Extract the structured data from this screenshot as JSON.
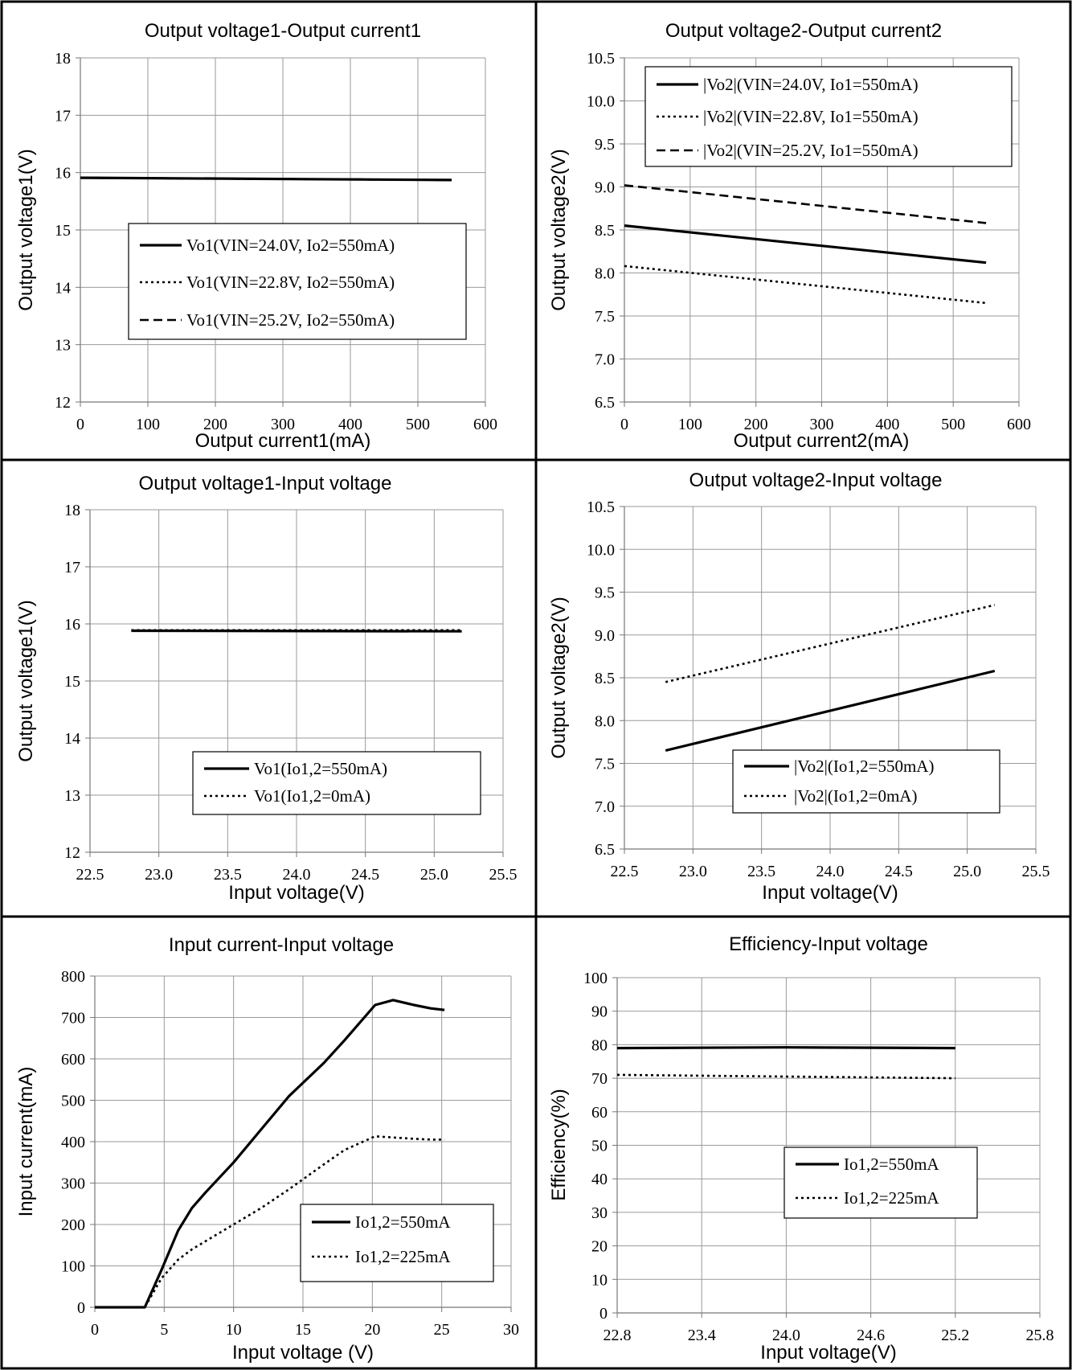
{
  "chart_data": [
    {
      "type": "line",
      "title": "Output voltage1-Output current1",
      "xlabel": "Output current1(mA)",
      "ylabel": "Output voltage1(V)",
      "xlim": [
        0,
        600
      ],
      "xticks": [
        0,
        100,
        200,
        300,
        400,
        500,
        600
      ],
      "xtick_labels": [
        "0",
        "100",
        "200",
        "300",
        "400",
        "500",
        "600"
      ],
      "ylim": [
        12,
        18
      ],
      "yticks": [
        12,
        13,
        14,
        15,
        16,
        17,
        18
      ],
      "ytick_labels": [
        "12",
        "13",
        "14",
        "15",
        "16",
        "17",
        "18"
      ],
      "legend_position": "center",
      "series": [
        {
          "name": "Vo1(VIN=24.0V, Io2=550mA)",
          "style": "solid",
          "x": [
            0,
            550
          ],
          "y": [
            15.91,
            15.87
          ]
        },
        {
          "name": "Vo1(VIN=22.8V, Io2=550mA)",
          "style": "dotted",
          "x": [
            0,
            550
          ],
          "y": [
            15.91,
            15.87
          ]
        },
        {
          "name": "Vo1(VIN=25.2V, Io2=550mA)",
          "style": "dashed",
          "x": [
            0,
            550
          ],
          "y": [
            15.91,
            15.87
          ]
        }
      ]
    },
    {
      "type": "line",
      "title": "Output voltage2-Output current2",
      "xlabel": "Output current2(mA)",
      "ylabel": "Output voltage2(V)",
      "xlim": [
        0,
        600
      ],
      "xticks": [
        0,
        100,
        200,
        300,
        400,
        500,
        600
      ],
      "xtick_labels": [
        "0",
        "100",
        "200",
        "300",
        "400",
        "500",
        "600"
      ],
      "ylim": [
        6.5,
        10.5
      ],
      "yticks": [
        6.5,
        7.0,
        7.5,
        8.0,
        8.5,
        9.0,
        9.5,
        10.0,
        10.5
      ],
      "ytick_labels": [
        "6.5",
        "7.0",
        "7.5",
        "8.0",
        "8.5",
        "9.0",
        "9.5",
        "10.0",
        "10.5"
      ],
      "legend_position": "top",
      "series": [
        {
          "name": "|Vo2|(VIN=24.0V, Io1=550mA)",
          "style": "solid",
          "x": [
            0,
            550
          ],
          "y": [
            8.55,
            8.12
          ]
        },
        {
          "name": "|Vo2|(VIN=22.8V, Io1=550mA)",
          "style": "dotted",
          "x": [
            0,
            550
          ],
          "y": [
            8.08,
            7.65
          ]
        },
        {
          "name": "|Vo2|(VIN=25.2V, Io1=550mA)",
          "style": "dashed",
          "x": [
            0,
            550
          ],
          "y": [
            9.02,
            8.58
          ]
        }
      ]
    },
    {
      "type": "line",
      "title": "Output voltage1-Input voltage",
      "xlabel": "Input voltage(V)",
      "ylabel": "Output voltage1(V)",
      "xlim": [
        22.5,
        25.5
      ],
      "xticks": [
        22.5,
        23.0,
        23.5,
        24.0,
        24.5,
        25.0,
        25.5
      ],
      "xtick_labels": [
        "22.5",
        "23.0",
        "23.5",
        "24.0",
        "24.5",
        "25.0",
        "25.5"
      ],
      "ylim": [
        12,
        18
      ],
      "yticks": [
        12,
        13,
        14,
        15,
        16,
        17,
        18
      ],
      "ytick_labels": [
        "12",
        "13",
        "14",
        "15",
        "16",
        "17",
        "18"
      ],
      "legend_position": "bottom-right",
      "series": [
        {
          "name": "Vo1(Io1,2=550mA)",
          "style": "solid",
          "x": [
            22.8,
            25.2
          ],
          "y": [
            15.88,
            15.87
          ]
        },
        {
          "name": "Vo1(Io1,2=0mA)",
          "style": "dotted",
          "x": [
            22.8,
            25.2
          ],
          "y": [
            15.89,
            15.89
          ]
        }
      ]
    },
    {
      "type": "line",
      "title": "Output voltage2-Input voltage",
      "xlabel": "Input voltage(V)",
      "ylabel": "Output voltage2(V)",
      "xlim": [
        22.5,
        25.5
      ],
      "xticks": [
        22.5,
        23.0,
        23.5,
        24.0,
        24.5,
        25.0,
        25.5
      ],
      "xtick_labels": [
        "22.5",
        "23.0",
        "23.5",
        "24.0",
        "24.5",
        "25.0",
        "25.5"
      ],
      "ylim": [
        6.5,
        10.5
      ],
      "yticks": [
        6.5,
        7.0,
        7.5,
        8.0,
        8.5,
        9.0,
        9.5,
        10.0,
        10.5
      ],
      "ytick_labels": [
        "6.5",
        "7.0",
        "7.5",
        "8.0",
        "8.5",
        "9.0",
        "9.5",
        "10.0",
        "10.5"
      ],
      "legend_position": "bottom-right",
      "series": [
        {
          "name": "|Vo2|(Io1,2=550mA)",
          "style": "solid",
          "x": [
            22.8,
            25.2
          ],
          "y": [
            7.65,
            8.58
          ]
        },
        {
          "name": "|Vo2|(Io1,2=0mA)",
          "style": "dotted",
          "x": [
            22.8,
            25.2
          ],
          "y": [
            8.45,
            9.35
          ]
        }
      ]
    },
    {
      "type": "line",
      "title": "Input current-Input voltage",
      "xlabel": "Input voltage (V)",
      "ylabel": "Input current(mA)",
      "xlim": [
        0,
        30
      ],
      "xticks": [
        0,
        5,
        10,
        15,
        20,
        25,
        30
      ],
      "xtick_labels": [
        "0",
        "5",
        "10",
        "15",
        "20",
        "25",
        "30"
      ],
      "ylim": [
        0,
        800
      ],
      "yticks": [
        0,
        100,
        200,
        300,
        400,
        500,
        600,
        700,
        800
      ],
      "ytick_labels": [
        "0",
        "100",
        "200",
        "300",
        "400",
        "500",
        "600",
        "700",
        "800"
      ],
      "legend_position": "bottom-right",
      "series": [
        {
          "name": "Io1,2=550mA",
          "style": "solid",
          "x": [
            0,
            3.6,
            4.8,
            6,
            7,
            8,
            10,
            12,
            14,
            16.5,
            18,
            20.2,
            21.5,
            23,
            24.2,
            25.2
          ],
          "y": [
            0,
            0,
            90,
            185,
            240,
            278,
            350,
            430,
            510,
            590,
            645,
            730,
            742,
            730,
            722,
            718
          ]
        },
        {
          "name": "Io1,2=225mA",
          "style": "dotted",
          "x": [
            0,
            3.6,
            4.8,
            6,
            7,
            8,
            10,
            12,
            14,
            16.5,
            18,
            20.2,
            21.5,
            23,
            24.2,
            25.2
          ],
          "y": [
            0,
            0,
            70,
            115,
            140,
            160,
            200,
            240,
            285,
            345,
            380,
            413,
            410,
            407,
            405,
            405
          ]
        }
      ]
    },
    {
      "type": "line",
      "title": "Efficiency-Input voltage",
      "xlabel": "Input voltage(V)",
      "ylabel": "Efficiency(%)",
      "xlim": [
        22.8,
        25.8
      ],
      "xticks": [
        22.8,
        23.4,
        24.0,
        24.6,
        25.2,
        25.8
      ],
      "xtick_labels": [
        "22.8",
        "23.4",
        "24.0",
        "24.6",
        "25.2",
        "25.8"
      ],
      "ylim": [
        0,
        100
      ],
      "yticks": [
        0,
        10,
        20,
        30,
        40,
        50,
        60,
        70,
        80,
        90,
        100
      ],
      "ytick_labels": [
        "0",
        "10",
        "20",
        "30",
        "40",
        "50",
        "60",
        "70",
        "80",
        "90",
        "100"
      ],
      "legend_position": "center-right",
      "series": [
        {
          "name": "Io1,2=550mA",
          "style": "solid",
          "x": [
            22.8,
            24.0,
            25.2
          ],
          "y": [
            79.0,
            79.2,
            79.0
          ]
        },
        {
          "name": "Io1,2=225mA",
          "style": "dotted",
          "x": [
            22.8,
            24.0,
            25.2
          ],
          "y": [
            71.0,
            70.5,
            70.0
          ]
        }
      ]
    }
  ]
}
